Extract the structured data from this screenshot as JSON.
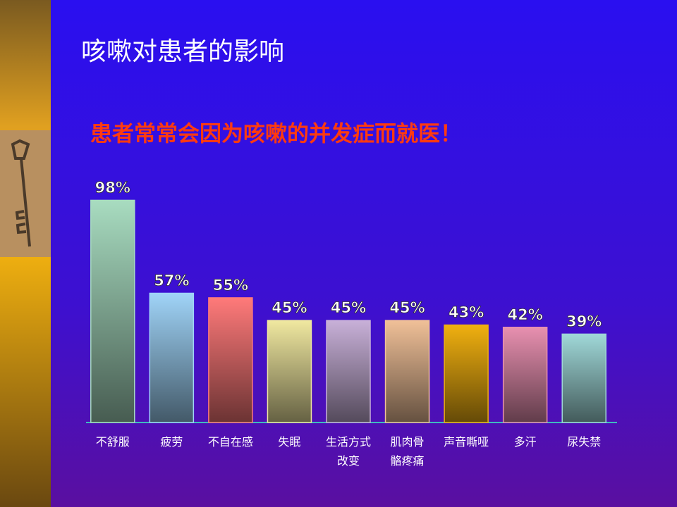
{
  "title": "咳嗽对患者的影响",
  "chart_data": {
    "type": "bar",
    "title": "患者常常会因为咳嗽的并发症而就医！",
    "categories": [
      "不舒服",
      "疲劳",
      "不自在感",
      "失眠",
      "生活方式\n改变",
      "肌肉骨\n骼疼痛",
      "声音嘶哑",
      "多汗",
      "尿失禁"
    ],
    "values": [
      98,
      57,
      55,
      45,
      45,
      45,
      43,
      42,
      39
    ],
    "value_labels": [
      "98%",
      "57%",
      "55%",
      "45%",
      "45%",
      "45%",
      "43%",
      "42%",
      "39%"
    ],
    "colors": [
      "#a8dcc0",
      "#a0d4f8",
      "#ff7a7a",
      "#f0e8a0",
      "#c8b0d8",
      "#f0c098",
      "#f0b010",
      "#e890b0",
      "#a0d8d8"
    ],
    "ylim": [
      0,
      100
    ]
  }
}
